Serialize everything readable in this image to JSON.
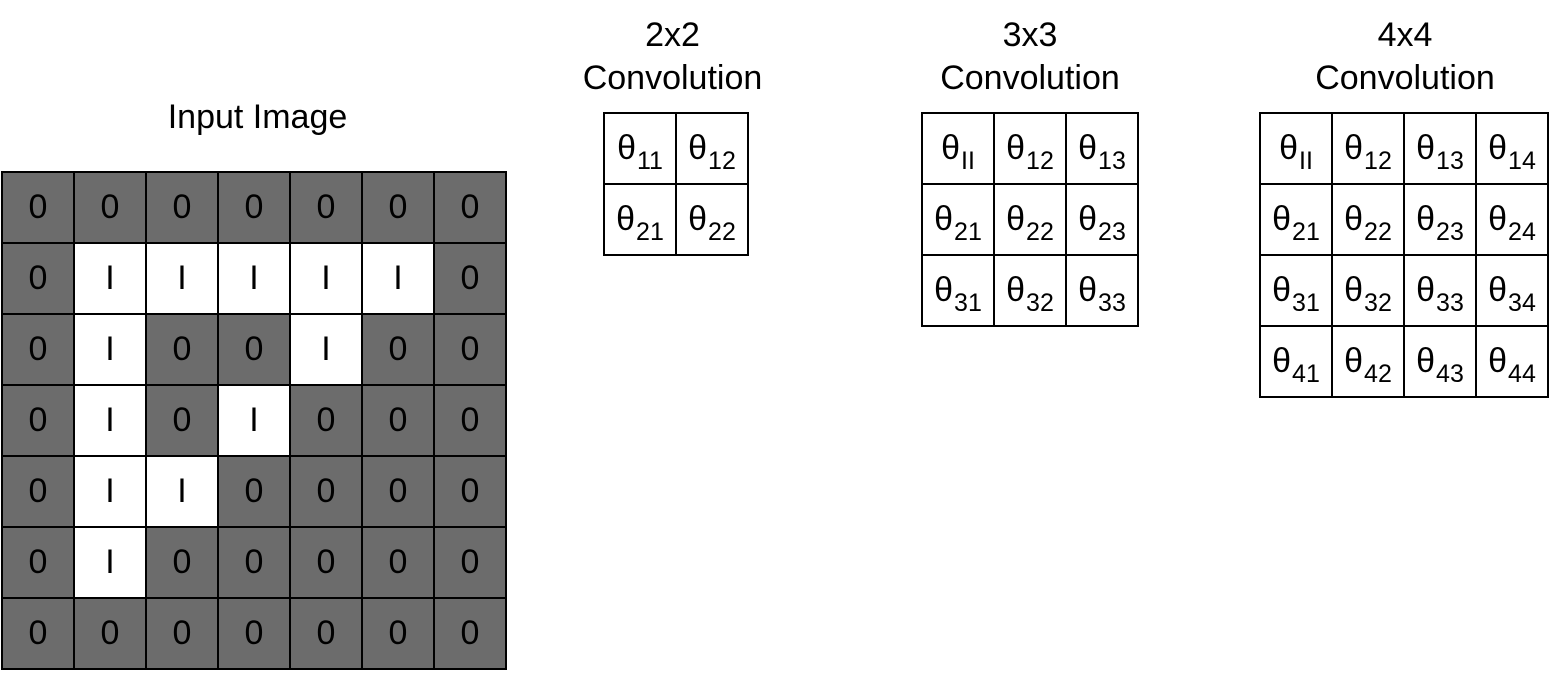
{
  "input": {
    "title": "Input Image",
    "display_values": {
      "0": "0",
      "1": "I"
    },
    "colors": {
      "0": "#6c6c6c",
      "1": "#ffffff"
    },
    "grid": [
      [
        0,
        0,
        0,
        0,
        0,
        0,
        0
      ],
      [
        0,
        1,
        1,
        1,
        1,
        1,
        0
      ],
      [
        0,
        1,
        0,
        0,
        1,
        0,
        0
      ],
      [
        0,
        1,
        0,
        1,
        0,
        0,
        0
      ],
      [
        0,
        1,
        1,
        0,
        0,
        0,
        0
      ],
      [
        0,
        1,
        0,
        0,
        0,
        0,
        0
      ],
      [
        0,
        0,
        0,
        0,
        0,
        0,
        0
      ]
    ]
  },
  "kernels": [
    {
      "title_line1": "2x2",
      "title_line2": "Convolution",
      "symbol": "θ",
      "subscripts": [
        [
          "11",
          "12"
        ],
        [
          "21",
          "22"
        ]
      ]
    },
    {
      "title_line1": "3x3",
      "title_line2": "Convolution",
      "symbol": "θ",
      "subscripts": [
        [
          "II",
          "12",
          "13"
        ],
        [
          "21",
          "22",
          "23"
        ],
        [
          "31",
          "32",
          "33"
        ]
      ]
    },
    {
      "title_line1": "4x4",
      "title_line2": "Convolution",
      "symbol": "θ",
      "subscripts": [
        [
          "II",
          "12",
          "13",
          "14"
        ],
        [
          "21",
          "22",
          "23",
          "24"
        ],
        [
          "31",
          "32",
          "33",
          "34"
        ],
        [
          "41",
          "42",
          "43",
          "44"
        ]
      ]
    }
  ]
}
